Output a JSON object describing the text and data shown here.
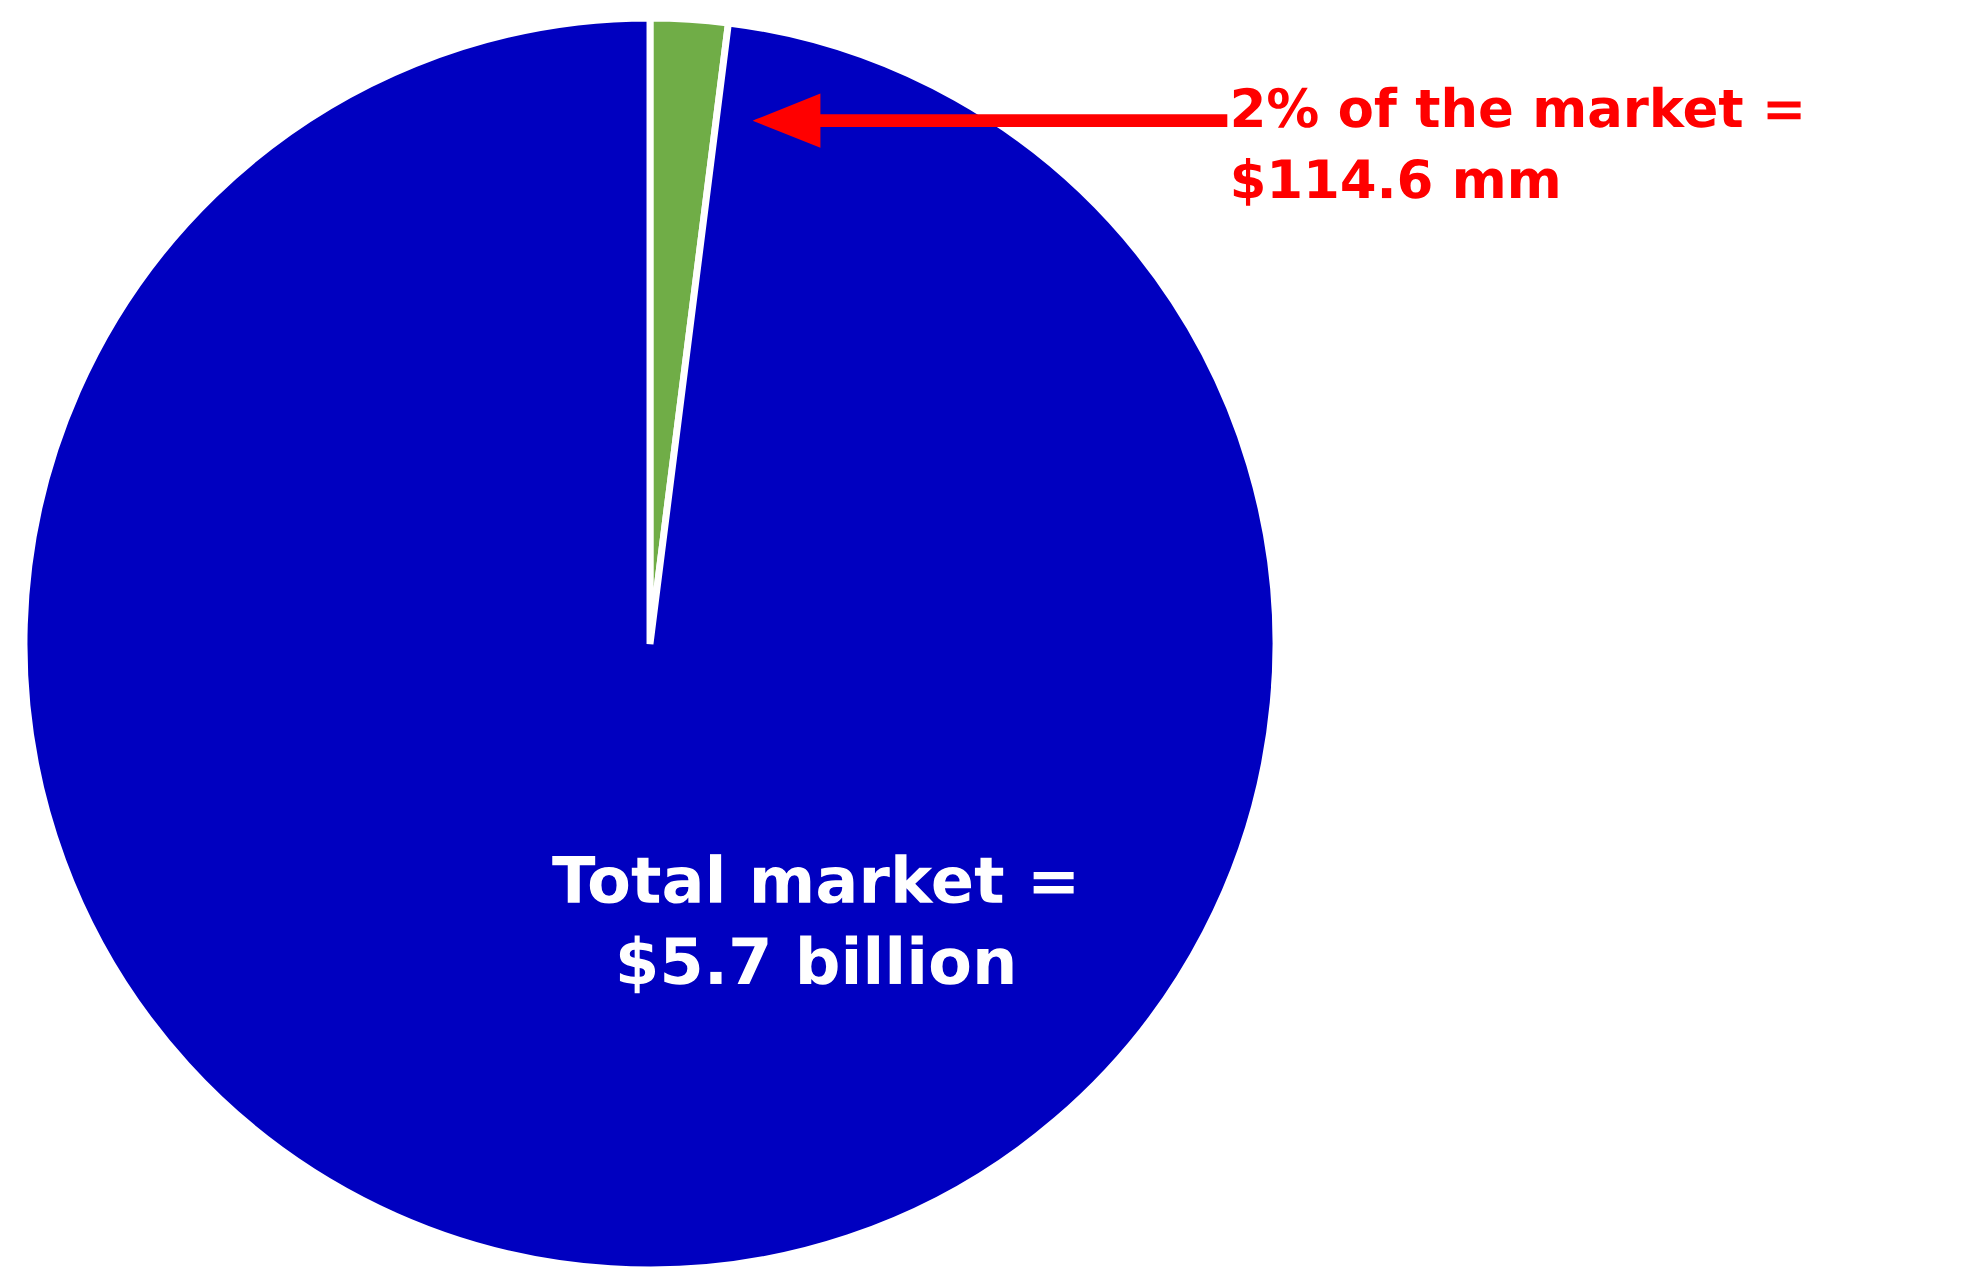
{
  "chart_data": {
    "type": "pie",
    "categories": [
      null,
      null
    ],
    "values": [
      2,
      98
    ],
    "colors": [
      "#70ad47",
      "#0000c0"
    ],
    "value_labels": [
      null,
      "Total market =\n$5.7 billion"
    ],
    "annotations": [
      "2% of the market =\n$114.6 mm"
    ]
  }
}
